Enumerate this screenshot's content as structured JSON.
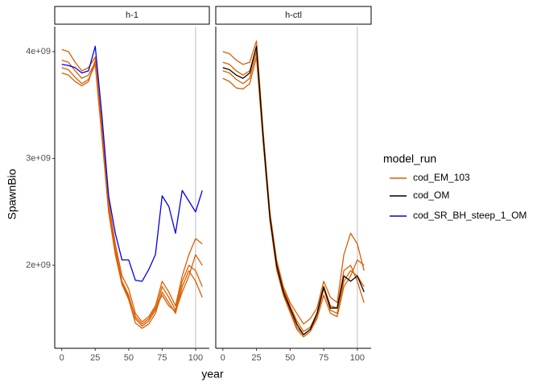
{
  "chart_data": [
    {
      "type": "line",
      "title": "h-1",
      "xlabel": "year",
      "ylabel": "SpawnBio",
      "x": [
        0,
        5,
        10,
        15,
        20,
        25,
        30,
        35,
        40,
        45,
        50,
        55,
        60,
        65,
        70,
        75,
        80,
        85,
        90,
        95,
        100,
        105
      ],
      "xlim": [
        -5.25,
        110.25
      ],
      "xticks": [
        0,
        25,
        50,
        75,
        100
      ],
      "ylim": [
        1223000000.0,
        4234000000.0
      ],
      "yticks": [
        {
          "value": 2000000000.0,
          "label": "2e+09"
        },
        {
          "value": 3000000000.0,
          "label": "3e+09"
        },
        {
          "value": 4000000000.0,
          "label": "4e+09"
        }
      ],
      "vline": 100,
      "series": [
        {
          "name": "cod_EM_103",
          "color": "#d95f02",
          "values": [
            4020000000.0,
            4000000000.0,
            3900000000.0,
            3820000000.0,
            3850000000.0,
            3950000000.0,
            3300000000.0,
            2600000000.0,
            2200000000.0,
            1900000000.0,
            1780000000.0,
            1550000000.0,
            1470000000.0,
            1520000000.0,
            1620000000.0,
            1850000000.0,
            1750000000.0,
            1620000000.0,
            1900000000.0,
            2100000000.0,
            2250000000.0,
            2200000000.0
          ]
        },
        {
          "name": "cod_EM_103",
          "color": "#d95f02",
          "values": [
            3920000000.0,
            3900000000.0,
            3820000000.0,
            3750000000.0,
            3780000000.0,
            3900000000.0,
            3250000000.0,
            2550000000.0,
            2150000000.0,
            1850000000.0,
            1720000000.0,
            1500000000.0,
            1430000000.0,
            1480000000.0,
            1580000000.0,
            1800000000.0,
            1700000000.0,
            1580000000.0,
            1850000000.0,
            2000000000.0,
            1950000000.0,
            1800000000.0
          ]
        },
        {
          "name": "cod_EM_103",
          "color": "#d95f02",
          "values": [
            3850000000.0,
            3830000000.0,
            3760000000.0,
            3700000000.0,
            3740000000.0,
            3880000000.0,
            3200000000.0,
            2500000000.0,
            2100000000.0,
            1820000000.0,
            1680000000.0,
            1460000000.0,
            1410000000.0,
            1450000000.0,
            1550000000.0,
            1750000000.0,
            1650000000.0,
            1550000000.0,
            1800000000.0,
            1950000000.0,
            1850000000.0,
            1700000000.0
          ]
        },
        {
          "name": "cod_EM_103",
          "color": "#d95f02",
          "values": [
            3800000000.0,
            3780000000.0,
            3720000000.0,
            3680000000.0,
            3720000000.0,
            3920000000.0,
            3220000000.0,
            2520000000.0,
            2120000000.0,
            1840000000.0,
            1700000000.0,
            1520000000.0,
            1450000000.0,
            1500000000.0,
            1600000000.0,
            1720000000.0,
            1620000000.0,
            1570000000.0,
            1750000000.0,
            1900000000.0,
            2100000000.0,
            2000000000.0
          ]
        },
        {
          "name": "cod_SR_BH_steep_1_OM",
          "color": "#0000e6",
          "values": [
            3880000000.0,
            3870000000.0,
            3850000000.0,
            3800000000.0,
            3820000000.0,
            4050000000.0,
            3400000000.0,
            2650000000.0,
            2300000000.0,
            2050000000.0,
            2050000000.0,
            1860000000.0,
            1850000000.0,
            1960000000.0,
            2100000000.0,
            2650000000.0,
            2550000000.0,
            2300000000.0,
            2700000000.0,
            2600000000.0,
            2500000000.0,
            2700000000.0
          ]
        }
      ]
    },
    {
      "type": "line",
      "title": "h-ctl",
      "x": [
        0,
        5,
        10,
        15,
        20,
        25,
        30,
        35,
        40,
        45,
        50,
        55,
        60,
        65,
        70,
        75,
        80,
        85,
        90,
        95,
        100,
        105
      ],
      "xlim": [
        -5.25,
        110.25
      ],
      "xticks": [
        0,
        25,
        50,
        75,
        100
      ],
      "ylim": [
        1223000000.0,
        4234000000.0
      ],
      "vline": 100,
      "series": [
        {
          "name": "cod_EM_103",
          "color": "#d95f02",
          "values": [
            4000000000.0,
            3980000000.0,
            3920000000.0,
            3880000000.0,
            3900000000.0,
            4100000000.0,
            3250000000.0,
            2500000000.0,
            2050000000.0,
            1800000000.0,
            1650000000.0,
            1550000000.0,
            1450000000.0,
            1500000000.0,
            1600000000.0,
            1850000000.0,
            1700000000.0,
            1650000000.0,
            2100000000.0,
            2300000000.0,
            2200000000.0,
            1950000000.0
          ]
        },
        {
          "name": "cod_EM_103",
          "color": "#d95f02",
          "values": [
            3900000000.0,
            3880000000.0,
            3820000000.0,
            3780000000.0,
            3820000000.0,
            4050000000.0,
            3220000000.0,
            2480000000.0,
            2020000000.0,
            1780000000.0,
            1620000000.0,
            1480000000.0,
            1380000000.0,
            1420000000.0,
            1550000000.0,
            1800000000.0,
            1620000000.0,
            1600000000.0,
            1950000000.0,
            2000000000.0,
            1850000000.0,
            1650000000.0
          ]
        },
        {
          "name": "cod_EM_103",
          "color": "#d95f02",
          "values": [
            3820000000.0,
            3800000000.0,
            3740000000.0,
            3700000000.0,
            3750000000.0,
            4000000000.0,
            3180000000.0,
            2440000000.0,
            1980000000.0,
            1740000000.0,
            1580000000.0,
            1420000000.0,
            1350000000.0,
            1400000000.0,
            1520000000.0,
            1780000000.0,
            1580000000.0,
            1550000000.0,
            1850000000.0,
            1950000000.0,
            1900000000.0,
            1800000000.0
          ]
        },
        {
          "name": "cod_EM_103",
          "color": "#d95f02",
          "values": [
            3750000000.0,
            3720000000.0,
            3660000000.0,
            3650000000.0,
            3700000000.0,
            3950000000.0,
            3150000000.0,
            2420000000.0,
            1960000000.0,
            1720000000.0,
            1560000000.0,
            1400000000.0,
            1330000000.0,
            1380000000.0,
            1500000000.0,
            1720000000.0,
            1550000000.0,
            1520000000.0,
            1800000000.0,
            1900000000.0,
            2050000000.0,
            2000000000.0
          ]
        },
        {
          "name": "cod_OM",
          "color": "#000000",
          "values": [
            3850000000.0,
            3830000000.0,
            3780000000.0,
            3750000000.0,
            3800000000.0,
            4050000000.0,
            3200000000.0,
            2450000000.0,
            2000000000.0,
            1750000000.0,
            1600000000.0,
            1450000000.0,
            1350000000.0,
            1400000000.0,
            1550000000.0,
            1800000000.0,
            1600000000.0,
            1600000000.0,
            1900000000.0,
            1850000000.0,
            1900000000.0,
            1750000000.0
          ]
        }
      ]
    }
  ],
  "legend": {
    "title": "model_run",
    "entries": [
      {
        "name": "cod_EM_103",
        "color": "#d95f02"
      },
      {
        "name": "cod_OM",
        "color": "#000000"
      },
      {
        "name": "cod_SR_BH_steep_1_OM",
        "color": "#0000e6"
      }
    ]
  }
}
